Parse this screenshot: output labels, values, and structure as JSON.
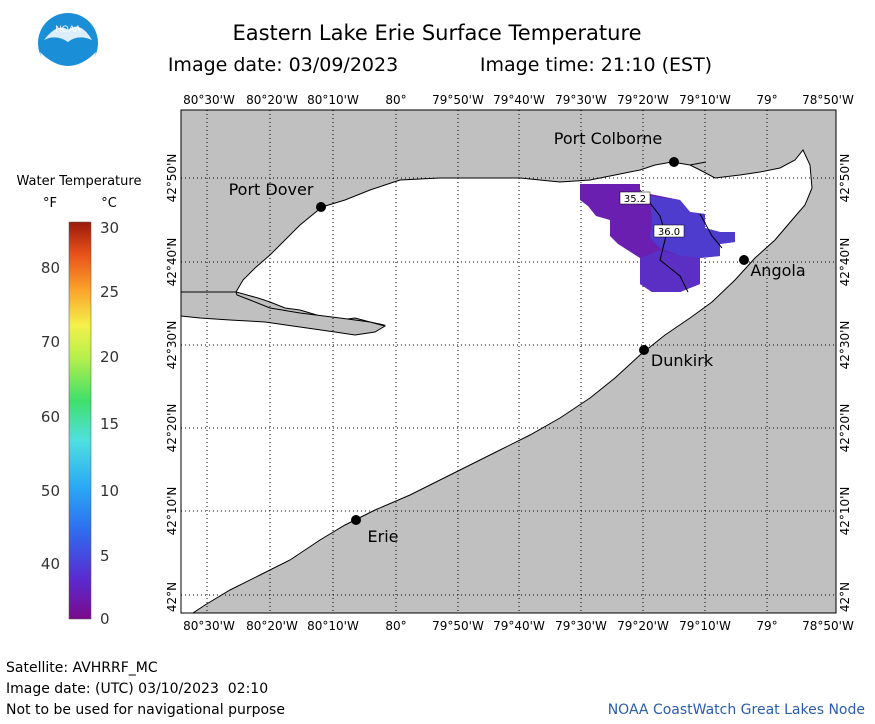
{
  "header": {
    "title": "Eastern Lake Erie Surface Temperature",
    "image_date_label": "Image date: 03/09/2023",
    "image_time_label": "Image time: 21:10 (EST)"
  },
  "logo": {
    "text": "NOAA"
  },
  "axes": {
    "top_labels": [
      "80°30'W",
      "80°20'W",
      "80°10'W",
      "80°",
      "79°50'W",
      "79°40'W",
      "79°30'W",
      "79°20'W",
      "79°10'W",
      "79°",
      "78°50'W"
    ],
    "bottom_labels": [
      "80°30'W",
      "80°20'W",
      "80°10'W",
      "80°",
      "79°50'W",
      "79°40'W",
      "79°30'W",
      "79°20'W",
      "79°10'W",
      "79°",
      "78°50'W"
    ],
    "left_labels": [
      "42°50'N",
      "42°40'N",
      "42°30'N",
      "42°20'N",
      "42°10'N",
      "42°N"
    ],
    "right_labels": [
      "42°50'N",
      "42°40'N",
      "42°30'N",
      "42°20'N",
      "42°10'N",
      "42°N"
    ]
  },
  "cities": [
    {
      "name": "Port Colborne"
    },
    {
      "name": "Port Dover"
    },
    {
      "name": "Angola"
    },
    {
      "name": "Dunkirk"
    },
    {
      "name": "Erie"
    }
  ],
  "data_labels": [
    "35.2",
    "36.0"
  ],
  "legend": {
    "title": "Water Temperature",
    "unit_f": "°F",
    "unit_c": "°C",
    "f_ticks": [
      "80",
      "70",
      "60",
      "50",
      "40"
    ],
    "c_ticks": [
      "30",
      "25",
      "20",
      "15",
      "10",
      "5",
      "0"
    ]
  },
  "footer": {
    "satellite": "Satellite: AVHRRF_MC",
    "utc_date": "Image date: (UTC) 03/10/2023  02:10",
    "disclaimer": "Not to be used for navigational purpose",
    "credit": "NOAA CoastWatch Great Lakes Node"
  },
  "colors": {
    "land": "#c0c0c0",
    "water": "#ffffff",
    "sst_cold": "#6a1fb0",
    "sst_mid": "#4b3fd0",
    "credit": "#2a5db0"
  }
}
